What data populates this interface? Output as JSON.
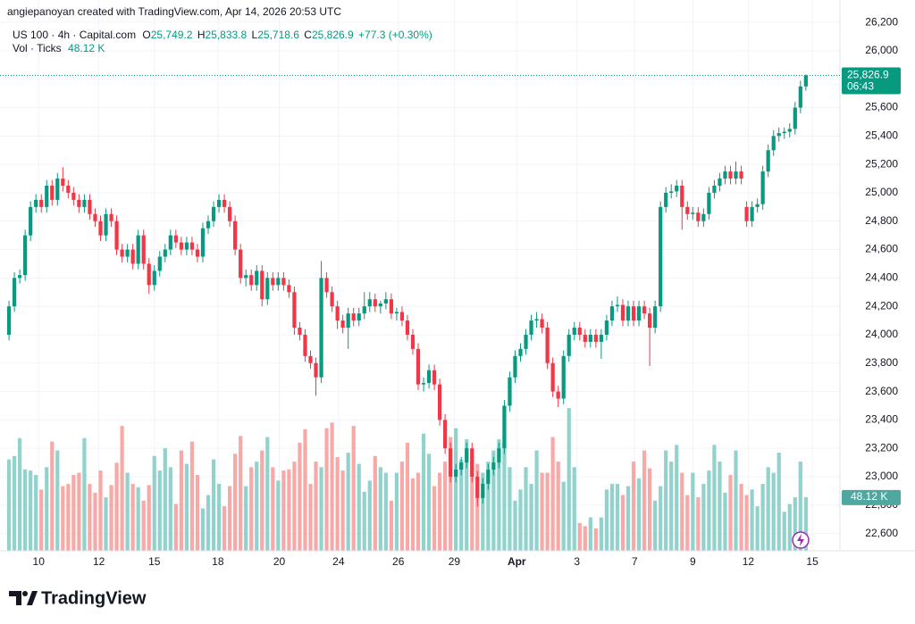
{
  "header": {
    "credit": "angiepanoyan created with TradingView.com, Apr 14, 2026 20:53 UTC",
    "symbol": "US 100 · 4h · Capital.com",
    "ohlc_legend": [
      {
        "key": "O",
        "value": "25,749.2"
      },
      {
        "key": "H",
        "value": "25,833.8"
      },
      {
        "key": "L",
        "value": "25,718.6"
      },
      {
        "key": "C",
        "value": "25,826.9"
      }
    ],
    "change": "+77.3 (+0.30%)",
    "volume_title": "Vol · Ticks",
    "volume_value": "48.12 K"
  },
  "logo": "TradingView",
  "chart_data": {
    "type": "candlestick",
    "up_color": "#089981",
    "down_color": "#f23645",
    "volume_up_color": "#92d2cc",
    "volume_down_color": "#f7a9a7",
    "price_label": {
      "value": 25826.9,
      "label": "25,826.9"
    },
    "countdown": "06:43",
    "volume_label": {
      "value": 48.12,
      "label": "48.12 K"
    },
    "ylim": [
      22478,
      26358
    ],
    "volume_ylim": [
      0,
      494
    ],
    "xlim": [
      -1.67,
      154.33
    ],
    "yticks": [
      {
        "value": 22600,
        "label": "22,600"
      },
      {
        "value": 22800,
        "label": "22,800"
      },
      {
        "value": 23000,
        "label": "23,000"
      },
      {
        "value": 23200,
        "label": "23,200"
      },
      {
        "value": 23400,
        "label": "23,400"
      },
      {
        "value": 23600,
        "label": "23,600"
      },
      {
        "value": 23800,
        "label": "23,800"
      },
      {
        "value": 24000,
        "label": "24,000"
      },
      {
        "value": 24200,
        "label": "24,200"
      },
      {
        "value": 24400,
        "label": "24,400"
      },
      {
        "value": 24600,
        "label": "24,600"
      },
      {
        "value": 24800,
        "label": "24,800"
      },
      {
        "value": 25000,
        "label": "25,000"
      },
      {
        "value": 25200,
        "label": "25,200"
      },
      {
        "value": 25400,
        "label": "25,400"
      },
      {
        "value": 25600,
        "label": "25,600"
      },
      {
        "value": 25800,
        "label": "25,800"
      },
      {
        "value": 26000,
        "label": "26,000"
      },
      {
        "value": 26200,
        "label": "26,200"
      }
    ],
    "xticks": [
      {
        "value": 5.5,
        "label": "10"
      },
      {
        "value": 16.7,
        "label": "12"
      },
      {
        "value": 27,
        "label": "15"
      },
      {
        "value": 38.8,
        "label": "18"
      },
      {
        "value": 50.2,
        "label": "20"
      },
      {
        "value": 61.2,
        "label": "24"
      },
      {
        "value": 72.3,
        "label": "26"
      },
      {
        "value": 82.7,
        "label": "29"
      },
      {
        "value": 94.3,
        "label": "Apr"
      },
      {
        "value": 105.5,
        "label": "3"
      },
      {
        "value": 116.2,
        "label": "7"
      },
      {
        "value": 127,
        "label": "9"
      },
      {
        "value": 137.3,
        "label": "12"
      },
      {
        "value": 149.2,
        "label": "15"
      }
    ],
    "candles": [
      [
        24000,
        24240,
        23960,
        24200
      ],
      [
        24200,
        24440,
        24160,
        24400
      ],
      [
        24400,
        24460,
        24360,
        24420
      ],
      [
        24420,
        24740,
        24380,
        24700
      ],
      [
        24700,
        24940,
        24660,
        24900
      ],
      [
        24900,
        24990,
        24860,
        24950
      ],
      [
        24950,
        24990,
        24860,
        24900
      ],
      [
        24900,
        25090,
        24860,
        25050
      ],
      [
        25050,
        25090,
        24910,
        24950
      ],
      [
        24950,
        25140,
        24910,
        25100
      ],
      [
        25100,
        25180,
        25010,
        25050
      ],
      [
        25050,
        25090,
        24960,
        25000
      ],
      [
        25000,
        25040,
        24910,
        24950
      ],
      [
        24950,
        24990,
        24860,
        24900
      ],
      [
        24900,
        24990,
        24860,
        24950
      ],
      [
        24950,
        24990,
        24810,
        24850
      ],
      [
        24850,
        24890,
        24760,
        24800
      ],
      [
        24800,
        24840,
        24660,
        24700
      ],
      [
        24700,
        24890,
        24660,
        24850
      ],
      [
        24850,
        24890,
        24760,
        24800
      ],
      [
        24800,
        24840,
        24560,
        24600
      ],
      [
        24600,
        24640,
        24510,
        24550
      ],
      [
        24550,
        24640,
        24510,
        24600
      ],
      [
        24600,
        24640,
        24460,
        24500
      ],
      [
        24500,
        24740,
        24460,
        24700
      ],
      [
        24700,
        24740,
        24460,
        24500
      ],
      [
        24500,
        24540,
        24290,
        24350
      ],
      [
        24350,
        24490,
        24310,
        24450
      ],
      [
        24450,
        24590,
        24410,
        24550
      ],
      [
        24550,
        24640,
        24510,
        24600
      ],
      [
        24600,
        24740,
        24560,
        24700
      ],
      [
        24700,
        24740,
        24610,
        24650
      ],
      [
        24650,
        24690,
        24560,
        24600
      ],
      [
        24600,
        24690,
        24560,
        24650
      ],
      [
        24650,
        24690,
        24560,
        24600
      ],
      [
        24600,
        24640,
        24510,
        24550
      ],
      [
        24550,
        24790,
        24510,
        24750
      ],
      [
        24750,
        24840,
        24710,
        24800
      ],
      [
        24800,
        24940,
        24760,
        24900
      ],
      [
        24900,
        24990,
        24860,
        24950
      ],
      [
        24950,
        24990,
        24860,
        24900
      ],
      [
        24900,
        24940,
        24760,
        24800
      ],
      [
        24800,
        24840,
        24560,
        24600
      ],
      [
        24600,
        24640,
        24360,
        24400
      ],
      [
        24400,
        24460,
        24340,
        24420
      ],
      [
        24420,
        24460,
        24310,
        24350
      ],
      [
        24350,
        24490,
        24310,
        24450
      ],
      [
        24450,
        24490,
        24200,
        24250
      ],
      [
        24250,
        24440,
        24210,
        24400
      ],
      [
        24400,
        24440,
        24310,
        24350
      ],
      [
        24350,
        24440,
        24310,
        24400
      ],
      [
        24400,
        24440,
        24310,
        24350
      ],
      [
        24350,
        24390,
        24260,
        24300
      ],
      [
        24300,
        24340,
        24000,
        24050
      ],
      [
        24050,
        24090,
        23960,
        24000
      ],
      [
        24000,
        24040,
        23810,
        23850
      ],
      [
        23850,
        23890,
        23760,
        23800
      ],
      [
        23800,
        23840,
        23570,
        23700
      ],
      [
        23700,
        24520,
        23660,
        24400
      ],
      [
        24400,
        24440,
        24260,
        24300
      ],
      [
        24300,
        24340,
        24160,
        24200
      ],
      [
        24200,
        24240,
        24040,
        24100
      ],
      [
        24100,
        24140,
        24010,
        24050
      ],
      [
        24050,
        24190,
        23900,
        24150
      ],
      [
        24150,
        24190,
        24060,
        24100
      ],
      [
        24100,
        24190,
        24060,
        24150
      ],
      [
        24150,
        24300,
        24110,
        24200
      ],
      [
        24200,
        24300,
        24160,
        24250
      ],
      [
        24250,
        24290,
        24160,
        24200
      ],
      [
        24200,
        24240,
        24150,
        24220
      ],
      [
        24220,
        24300,
        24180,
        24250
      ],
      [
        24250,
        24290,
        24110,
        24150
      ],
      [
        24150,
        24190,
        24100,
        24160
      ],
      [
        24160,
        24200,
        24060,
        24100
      ],
      [
        24100,
        24140,
        23960,
        24000
      ],
      [
        24000,
        24040,
        23860,
        23900
      ],
      [
        23900,
        23940,
        23610,
        23650
      ],
      [
        23650,
        23700,
        23600,
        23660
      ],
      [
        23660,
        23790,
        23620,
        23750
      ],
      [
        23750,
        23790,
        23610,
        23650
      ],
      [
        23650,
        23690,
        23360,
        23400
      ],
      [
        23400,
        23440,
        23160,
        23200
      ],
      [
        23200,
        23240,
        22960,
        23000
      ],
      [
        23000,
        23090,
        22960,
        23050
      ],
      [
        23050,
        23140,
        23010,
        23100
      ],
      [
        23100,
        23240,
        23060,
        23200
      ],
      [
        23200,
        23240,
        22960,
        23000
      ],
      [
        23000,
        23040,
        22790,
        22850
      ],
      [
        22850,
        22990,
        22810,
        22950
      ],
      [
        22950,
        23090,
        22910,
        23050
      ],
      [
        23050,
        23140,
        23010,
        23100
      ],
      [
        23100,
        23240,
        23060,
        23200
      ],
      [
        23200,
        23540,
        23160,
        23500
      ],
      [
        23500,
        23740,
        23460,
        23700
      ],
      [
        23700,
        23890,
        23660,
        23850
      ],
      [
        23850,
        23940,
        23810,
        23900
      ],
      [
        23900,
        24040,
        23860,
        24000
      ],
      [
        24000,
        24140,
        23960,
        24100
      ],
      [
        24100,
        24160,
        24050,
        24110
      ],
      [
        24110,
        24150,
        24010,
        24050
      ],
      [
        24050,
        24090,
        23760,
        23800
      ],
      [
        23800,
        23840,
        23560,
        23600
      ],
      [
        23600,
        23640,
        23490,
        23550
      ],
      [
        23550,
        23890,
        23510,
        23850
      ],
      [
        23850,
        24040,
        23810,
        24000
      ],
      [
        24000,
        24090,
        23960,
        24050
      ],
      [
        24050,
        24090,
        23960,
        24000
      ],
      [
        24000,
        24040,
        23910,
        23950
      ],
      [
        23950,
        24040,
        23910,
        24000
      ],
      [
        24000,
        24040,
        23910,
        23950
      ],
      [
        23950,
        24040,
        23830,
        24000
      ],
      [
        24000,
        24140,
        23960,
        24100
      ],
      [
        24100,
        24240,
        24060,
        24200
      ],
      [
        24200,
        24270,
        24160,
        24210
      ],
      [
        24210,
        24250,
        24060,
        24100
      ],
      [
        24100,
        24240,
        24060,
        24200
      ],
      [
        24200,
        24240,
        24060,
        24100
      ],
      [
        24100,
        24240,
        24060,
        24200
      ],
      [
        24200,
        24240,
        24110,
        24150
      ],
      [
        24150,
        24190,
        23780,
        24050
      ],
      [
        24050,
        24240,
        24010,
        24200
      ],
      [
        24200,
        24940,
        24160,
        24900
      ],
      [
        24900,
        25040,
        24860,
        25000
      ],
      [
        25000,
        25060,
        24960,
        25010
      ],
      [
        25010,
        25090,
        24970,
        25050
      ],
      [
        25050,
        25090,
        24740,
        24900
      ],
      [
        24900,
        24940,
        24810,
        24850
      ],
      [
        24850,
        24900,
        24810,
        24860
      ],
      [
        24860,
        24900,
        24760,
        24800
      ],
      [
        24800,
        24890,
        24760,
        24850
      ],
      [
        24850,
        25040,
        24810,
        25000
      ],
      [
        25000,
        25090,
        24960,
        25050
      ],
      [
        25050,
        25140,
        25010,
        25100
      ],
      [
        25100,
        25190,
        25060,
        25150
      ],
      [
        25150,
        25190,
        25060,
        25100
      ],
      [
        25100,
        25220,
        25060,
        25150
      ],
      [
        25150,
        25190,
        25060,
        25100
      ],
      [
        24900,
        24940,
        24760,
        24800
      ],
      [
        24800,
        24940,
        24760,
        24900
      ],
      [
        24900,
        24960,
        24860,
        24920
      ],
      [
        24920,
        25190,
        24880,
        25150
      ],
      [
        25150,
        25340,
        25110,
        25300
      ],
      [
        25300,
        25440,
        25260,
        25400
      ],
      [
        25400,
        25460,
        25360,
        25420
      ],
      [
        25420,
        25460,
        25380,
        25430
      ],
      [
        25430,
        25490,
        25390,
        25450
      ],
      [
        25450,
        25640,
        25410,
        25600
      ],
      [
        25600,
        25790,
        25560,
        25749.2
      ],
      [
        25749.2,
        25833.8,
        25718.6,
        25826.9
      ]
    ],
    "volume": [
      82,
      85,
      101,
      73,
      72,
      68,
      55,
      75,
      98,
      90,
      58,
      60,
      68,
      70,
      101,
      60,
      52,
      72,
      48,
      59,
      79,
      112,
      70,
      60,
      57,
      45,
      59,
      85,
      72,
      92,
      75,
      42,
      90,
      78,
      98,
      68,
      38,
      50,
      82,
      60,
      40,
      58,
      87,
      103,
      58,
      75,
      80,
      90,
      102,
      75,
      63,
      72,
      73,
      80,
      97,
      109,
      60,
      80,
      75,
      110,
      115,
      84,
      72,
      88,
      112,
      78,
      53,
      63,
      85,
      75,
      70,
      45,
      70,
      80,
      97,
      65,
      70,
      105,
      87,
      58,
      70,
      80,
      102,
      110,
      82,
      100,
      85,
      78,
      70,
      80,
      90,
      100,
      98,
      75,
      45,
      55,
      75,
      60,
      90,
      70,
      70,
      102,
      80,
      62,
      128,
      75,
      25,
      22,
      30,
      20,
      30,
      55,
      60,
      60,
      50,
      58,
      80,
      65,
      90,
      74,
      45,
      58,
      90,
      80,
      95,
      70,
      50,
      70,
      48,
      60,
      72,
      95,
      80,
      52,
      68,
      90,
      60,
      50,
      55,
      40,
      60,
      75,
      70,
      88,
      35,
      42,
      48,
      80,
      48.12
    ]
  }
}
